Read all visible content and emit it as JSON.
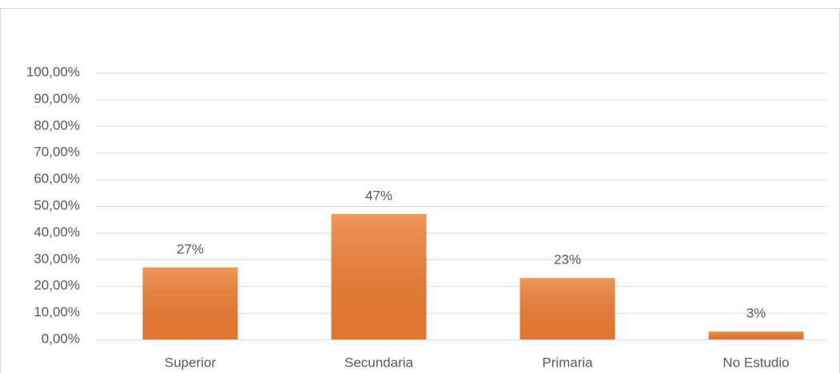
{
  "chart_data": {
    "type": "bar",
    "categories": [
      "Superior",
      "Secundaria",
      "Primaria",
      "No Estudio"
    ],
    "values": [
      27,
      47,
      23,
      3
    ],
    "value_labels": [
      "27%",
      "47%",
      "23%",
      "3%"
    ],
    "color": "#ed7d31",
    "ylim": [
      0,
      100
    ],
    "yticks": [
      {
        "value": 0,
        "label": "0,00%"
      },
      {
        "value": 10,
        "label": "10,00%"
      },
      {
        "value": 20,
        "label": "20,00%"
      },
      {
        "value": 30,
        "label": "30,00%"
      },
      {
        "value": 40,
        "label": "40,00%"
      },
      {
        "value": 50,
        "label": "50,00%"
      },
      {
        "value": 60,
        "label": "60,00%"
      },
      {
        "value": 70,
        "label": "70,00%"
      },
      {
        "value": 80,
        "label": "80,00%"
      },
      {
        "value": 90,
        "label": "90,00%"
      },
      {
        "value": 100,
        "label": "100,00%"
      }
    ],
    "grid": true
  }
}
